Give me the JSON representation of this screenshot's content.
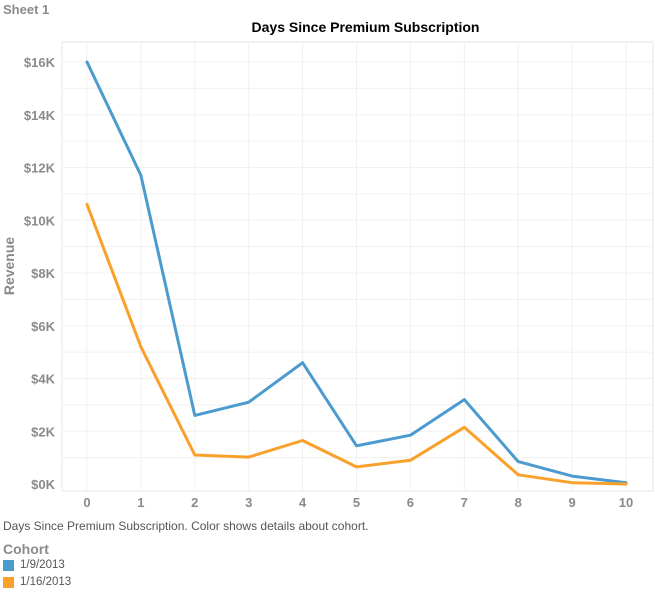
{
  "sheet_title": "Sheet 1",
  "caption": "Days Since Premium Subscription.  Color shows details about cohort.",
  "legend": {
    "title": "Cohort",
    "items": [
      {
        "label": "1/9/2013",
        "color": "#4c9bcf"
      },
      {
        "label": "1/16/2013",
        "color": "#f9a12a"
      }
    ]
  },
  "chart_data": {
    "type": "line",
    "title": "Days Since Premium Subscription",
    "xlabel": "",
    "ylabel": "Revenue",
    "x": [
      0,
      1,
      2,
      3,
      4,
      5,
      6,
      7,
      8,
      9,
      10
    ],
    "y_ticks": [
      0,
      2000,
      4000,
      6000,
      8000,
      10000,
      12000,
      14000,
      16000
    ],
    "y_tick_labels": [
      "$0K",
      "$2K",
      "$4K",
      "$6K",
      "$8K",
      "$10K",
      "$12K",
      "$14K",
      "$16K"
    ],
    "ylim": [
      0,
      16800
    ],
    "grid": true,
    "legend_position": "bottom-left",
    "series": [
      {
        "name": "1/9/2013",
        "color": "#4c9bcf",
        "values": [
          16000,
          11700,
          2600,
          3100,
          4600,
          1450,
          1850,
          3200,
          850,
          300,
          50
        ]
      },
      {
        "name": "1/16/2013",
        "color": "#f9a12a",
        "values": [
          10600,
          5200,
          1100,
          1020,
          1650,
          650,
          900,
          2150,
          350,
          50,
          0
        ]
      }
    ]
  }
}
